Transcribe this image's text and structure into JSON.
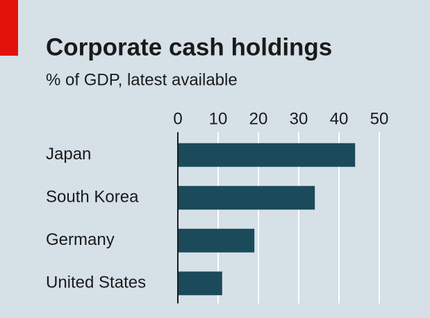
{
  "chart_data": {
    "type": "bar",
    "orientation": "horizontal",
    "title": "Corporate cash holdings",
    "subtitle": "% of GDP, latest available",
    "categories": [
      "Japan",
      "South Korea",
      "Germany",
      "United States"
    ],
    "values": [
      44,
      34,
      19,
      11
    ],
    "color": "#1b4a5a",
    "xlim": [
      0,
      50
    ],
    "xticks": [
      0,
      10,
      20,
      30,
      40,
      50
    ],
    "grid": true
  }
}
